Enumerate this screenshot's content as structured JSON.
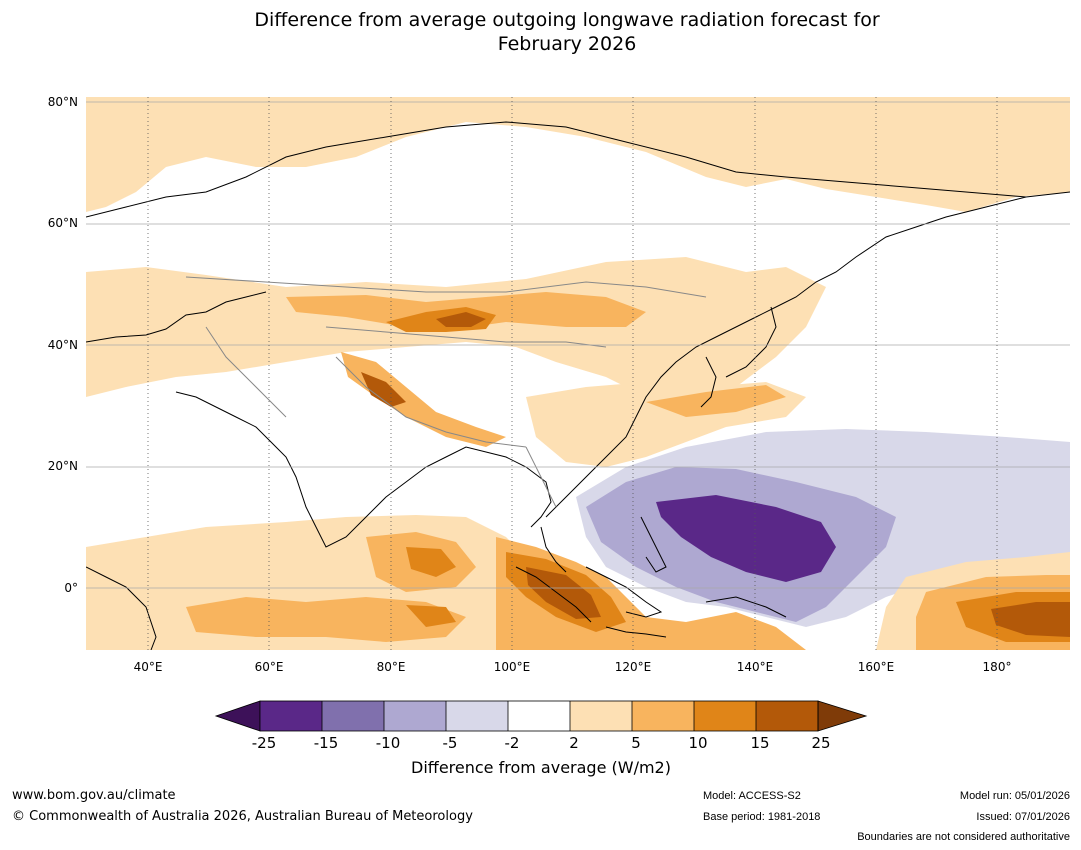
{
  "title_line1": "Difference from average outgoing longwave radiation forecast for",
  "title_line2": "February 2026",
  "lat_labels": [
    "80°N",
    "60°N",
    "40°N",
    "20°N",
    "0°"
  ],
  "lon_labels": [
    "40°E",
    "60°E",
    "80°E",
    "100°E",
    "120°E",
    "140°E",
    "160°E",
    "180°"
  ],
  "colorbar": {
    "ticks": [
      "-25",
      "-15",
      "-10",
      "-5",
      "-2",
      "2",
      "5",
      "10",
      "15",
      "25"
    ],
    "colors": [
      "#3d1159",
      "#5a2888",
      "#8070ad",
      "#aea8d1",
      "#d8d8e9",
      "#ffffff",
      "#fde0b4",
      "#f8b45e",
      "#e08518",
      "#b35909",
      "#7f3b08"
    ],
    "label": "Difference from average (W/m2)"
  },
  "footer": {
    "website": "www.bom.gov.au/climate",
    "copyright": "© Commonwealth of Australia 2026, Australian Bureau of Meteorology",
    "model": "Model: ACCESS-S2",
    "base_period": "Base period: 1981-2018",
    "model_run": "Model run: 05/01/2026",
    "issued": "Issued: 07/01/2026",
    "disclaimer": "Boundaries are not considered authoritative"
  }
}
